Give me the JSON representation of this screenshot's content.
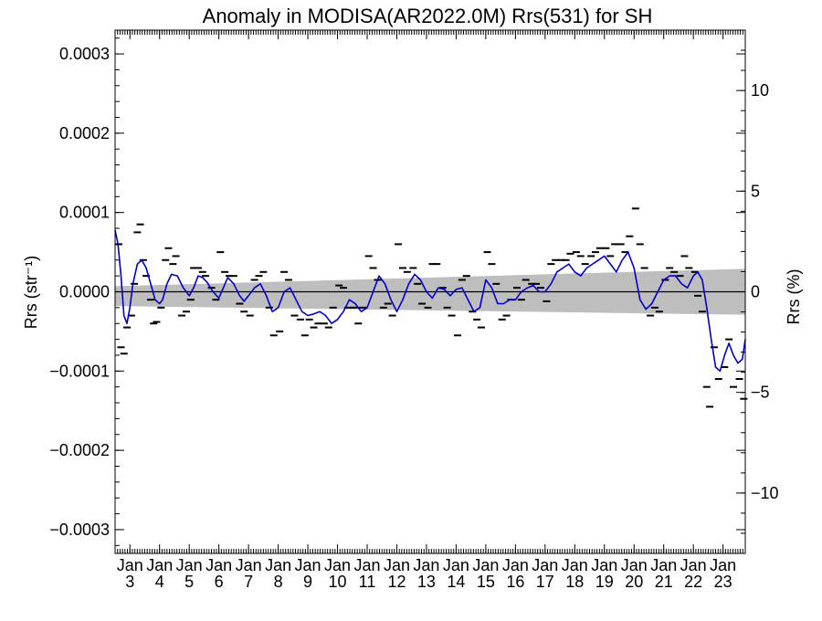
{
  "chart_data": {
    "type": "line",
    "title": "Anomaly in MODISA(AR2022.0M) Rrs(531) for SH",
    "ylabel": "Rrs (str⁻¹)",
    "y2label": "Rrs (%)",
    "xlabel": "",
    "ylim": [
      -0.00033,
      0.00033
    ],
    "y2lim": [
      -13,
      13
    ],
    "xlim": [
      2002.5,
      2023.75
    ],
    "yticks": [
      {
        "v": 0.0003,
        "label": "0.0003"
      },
      {
        "v": 0.0002,
        "label": "0.0002"
      },
      {
        "v": 0.0001,
        "label": "0.0001"
      },
      {
        "v": 0.0,
        "label": "0.0000"
      },
      {
        "v": -0.0001,
        "label": "−0.0001"
      },
      {
        "v": -0.0002,
        "label": "−0.0002"
      },
      {
        "v": -0.0003,
        "label": "−0.0003"
      }
    ],
    "y2ticks": [
      {
        "v": 10,
        "label": "10"
      },
      {
        "v": 5,
        "label": "5"
      },
      {
        "v": 0,
        "label": "0"
      },
      {
        "v": -5,
        "label": "−5"
      },
      {
        "v": -10,
        "label": "−10"
      }
    ],
    "xticks": [
      {
        "v": 2003,
        "month": "Jan",
        "year": "3"
      },
      {
        "v": 2004,
        "month": "Jan",
        "year": "4"
      },
      {
        "v": 2005,
        "month": "Jan",
        "year": "5"
      },
      {
        "v": 2006,
        "month": "Jan",
        "year": "6"
      },
      {
        "v": 2007,
        "month": "Jan",
        "year": "7"
      },
      {
        "v": 2008,
        "month": "Jan",
        "year": "8"
      },
      {
        "v": 2009,
        "month": "Jan",
        "year": "9"
      },
      {
        "v": 2010,
        "month": "Jan",
        "year": "10"
      },
      {
        "v": 2011,
        "month": "Jan",
        "year": "11"
      },
      {
        "v": 2012,
        "month": "Jan",
        "year": "12"
      },
      {
        "v": 2013,
        "month": "Jan",
        "year": "13"
      },
      {
        "v": 2014,
        "month": "Jan",
        "year": "14"
      },
      {
        "v": 2015,
        "month": "Jan",
        "year": "15"
      },
      {
        "v": 2016,
        "month": "Jan",
        "year": "16"
      },
      {
        "v": 2017,
        "month": "Jan",
        "year": "17"
      },
      {
        "v": 2018,
        "month": "Jan",
        "year": "18"
      },
      {
        "v": 2019,
        "month": "Jan",
        "year": "19"
      },
      {
        "v": 2020,
        "month": "Jan",
        "year": "20"
      },
      {
        "v": 2021,
        "month": "Jan",
        "year": "21"
      },
      {
        "v": 2022,
        "month": "Jan",
        "year": "22"
      },
      {
        "v": 2023,
        "month": "Jan",
        "year": "23"
      }
    ],
    "confidence_band": {
      "x": [
        2002.5,
        2023.75
      ],
      "upper": [
        7e-06,
        2.9e-05
      ],
      "lower": [
        -1.8e-05,
        -2.9e-05
      ],
      "color": "#bebebe"
    },
    "zero_line": 0,
    "colors": {
      "smooth_line": "#0000cc",
      "monthly_marks": "#000000",
      "band": "#bebebe",
      "zero_line": "#000000"
    },
    "series": [
      {
        "style": "line",
        "x": [
          2002.5,
          2002.6,
          2002.7,
          2002.8,
          2002.9,
          2003.0,
          2003.1,
          2003.25,
          2003.4,
          2003.55,
          2003.7,
          2003.85,
          2004.0,
          2004.1,
          2004.25,
          2004.4,
          2004.6,
          2004.8,
          2005.0,
          2005.15,
          2005.3,
          2005.45,
          2005.6,
          2005.8,
          2006.0,
          2006.15,
          2006.3,
          2006.5,
          2006.7,
          2006.85,
          2007.0,
          2007.2,
          2007.4,
          2007.6,
          2007.8,
          2008.0,
          2008.2,
          2008.4,
          2008.6,
          2008.8,
          2009.0,
          2009.2,
          2009.4,
          2009.6,
          2009.8,
          2010.0,
          2010.2,
          2010.4,
          2010.6,
          2010.8,
          2011.0,
          2011.2,
          2011.4,
          2011.6,
          2011.8,
          2012.0,
          2012.2,
          2012.4,
          2012.6,
          2012.8,
          2013.0,
          2013.2,
          2013.4,
          2013.6,
          2013.8,
          2014.0,
          2014.2,
          2014.4,
          2014.6,
          2014.8,
          2015.0,
          2015.2,
          2015.4,
          2015.6,
          2015.8,
          2016.0,
          2016.2,
          2016.4,
          2016.6,
          2016.8,
          2017.0,
          2017.2,
          2017.4,
          2017.6,
          2017.8,
          2018.0,
          2018.2,
          2018.4,
          2018.6,
          2018.8,
          2019.0,
          2019.2,
          2019.4,
          2019.6,
          2019.8,
          2020.0,
          2020.2,
          2020.4,
          2020.6,
          2020.8,
          2021.0,
          2021.2,
          2021.4,
          2021.6,
          2021.8,
          2022.0,
          2022.15,
          2022.3,
          2022.45,
          2022.6,
          2022.75,
          2022.9,
          2023.05,
          2023.2,
          2023.35,
          2023.5,
          2023.65,
          2023.75
        ],
        "values": [
          7.8e-05,
          6e-05,
          2e-05,
          -3e-05,
          -4e-05,
          -2e-05,
          1e-05,
          3.5e-05,
          4e-05,
          3e-05,
          1e-05,
          -1e-05,
          -1.5e-05,
          -1e-05,
          1e-05,
          2.2e-05,
          2e-05,
          5e-06,
          -5e-06,
          5e-06,
          2e-05,
          1.8e-05,
          1.2e-05,
          0.0,
          -8e-06,
          5e-06,
          1.8e-05,
          1e-05,
          -5e-06,
          -1.2e-05,
          -5e-06,
          5e-06,
          1e-05,
          -5e-06,
          -2.5e-05,
          -2e-05,
          0.0,
          5e-06,
          -1e-05,
          -2.5e-05,
          -3e-05,
          -2.8e-05,
          -2.5e-05,
          -3e-05,
          -4e-05,
          -3.5e-05,
          -2.5e-05,
          -1e-05,
          -1.5e-05,
          -2.5e-05,
          -2e-05,
          0.0,
          2e-05,
          1e-05,
          -1e-05,
          -2.5e-05,
          -1e-05,
          1e-05,
          2.2e-05,
          1.5e-05,
          0.0,
          -8e-06,
          5e-06,
          3e-06,
          -5e-06,
          3e-06,
          5e-06,
          -1e-05,
          -2.5e-05,
          -2e-05,
          1.5e-05,
          5e-06,
          -1.5e-05,
          -1.5e-05,
          -1e-05,
          -1e-05,
          0.0,
          5e-06,
          8e-06,
          0.0,
          0.0,
          1e-05,
          2.5e-05,
          3e-05,
          3.5e-05,
          2.5e-05,
          2e-05,
          3e-05,
          3.5e-05,
          4e-05,
          4.5e-05,
          3.5e-05,
          2.5e-05,
          4e-05,
          5e-05,
          3e-05,
          -1e-05,
          -2.2e-05,
          -1.5e-05,
          0.0,
          1.5e-05,
          2e-05,
          2e-05,
          1e-05,
          5e-06,
          2e-05,
          2.5e-05,
          1.5e-05,
          -2e-05,
          -6e-05,
          -9.5e-05,
          -0.0001,
          -8e-05,
          -6.5e-05,
          -8e-05,
          -9e-05,
          -8.5e-05,
          -6e-05
        ]
      },
      {
        "style": "ticks",
        "x": [
          2002.62,
          2002.7,
          2002.8,
          2002.9,
          2003.05,
          2003.15,
          2003.25,
          2003.35,
          2003.45,
          2003.55,
          2003.7,
          2003.8,
          2003.9,
          2004.05,
          2004.2,
          2004.3,
          2004.45,
          2004.55,
          2004.75,
          2004.9,
          2005.05,
          2005.15,
          2005.3,
          2005.45,
          2005.55,
          2005.75,
          2005.9,
          2006.05,
          2006.2,
          2006.35,
          2006.5,
          2006.7,
          2006.85,
          2007.05,
          2007.2,
          2007.35,
          2007.5,
          2007.7,
          2007.85,
          2008.05,
          2008.2,
          2008.35,
          2008.55,
          2008.75,
          2008.9,
          2009.05,
          2009.2,
          2009.35,
          2009.55,
          2009.7,
          2009.85,
          2010.05,
          2010.2,
          2010.35,
          2010.55,
          2010.7,
          2010.85,
          2011.05,
          2011.2,
          2011.35,
          2011.55,
          2011.7,
          2011.85,
          2012.05,
          2012.2,
          2012.35,
          2012.55,
          2012.7,
          2012.85,
          2013.05,
          2013.2,
          2013.35,
          2013.55,
          2013.7,
          2013.85,
          2014.05,
          2014.2,
          2014.35,
          2014.55,
          2014.7,
          2014.85,
          2015.05,
          2015.2,
          2015.35,
          2015.55,
          2015.7,
          2015.85,
          2016.05,
          2016.2,
          2016.35,
          2016.55,
          2016.7,
          2016.85,
          2017.05,
          2017.2,
          2017.35,
          2017.55,
          2017.7,
          2017.85,
          2018.05,
          2018.2,
          2018.35,
          2018.55,
          2018.7,
          2018.85,
          2019.05,
          2019.2,
          2019.35,
          2019.55,
          2019.7,
          2019.85,
          2020.05,
          2020.2,
          2020.35,
          2020.55,
          2020.7,
          2020.85,
          2021.05,
          2021.2,
          2021.35,
          2021.55,
          2021.7,
          2021.85,
          2022.05,
          2022.15,
          2022.3,
          2022.45,
          2022.55,
          2022.7,
          2022.85,
          2023.05,
          2023.2,
          2023.35,
          2023.55,
          2023.7
        ],
        "values": [
          6e-05,
          -7e-05,
          -7.8e-05,
          -4.5e-05,
          -3e-05,
          1e-05,
          7.5e-05,
          8.5e-05,
          4e-05,
          2e-05,
          -1e-05,
          -4e-05,
          -3.8e-05,
          -2e-05,
          4e-05,
          5.5e-05,
          3.5e-05,
          4.5e-05,
          -3e-05,
          -2.5e-05,
          -1e-05,
          3e-05,
          3e-05,
          2.5e-05,
          2e-05,
          5e-06,
          -1e-05,
          5e-05,
          2.5e-05,
          2e-05,
          2e-05,
          -1.5e-05,
          -2.5e-05,
          -3e-05,
          1.5e-05,
          2e-05,
          2.5e-05,
          -2e-05,
          -5.5e-05,
          -5e-05,
          2.5e-05,
          1.5e-05,
          -3e-05,
          -3.5e-05,
          -5.5e-05,
          -3.5e-05,
          -4.5e-05,
          -4e-05,
          -4e-05,
          -4.5e-05,
          -2e-05,
          8e-06,
          5e-06,
          -2e-05,
          -2e-05,
          -4e-05,
          -2e-05,
          4.5e-05,
          3e-05,
          1.5e-05,
          -2e-05,
          -1.5e-05,
          -3e-05,
          6e-05,
          3e-05,
          2.5e-05,
          3e-05,
          1e-05,
          -1.5e-05,
          -2e-05,
          3.5e-05,
          3.5e-05,
          5e-06,
          -2e-05,
          -3e-05,
          -5.5e-05,
          1.5e-05,
          2e-05,
          -2.5e-05,
          -3.5e-05,
          -4.5e-05,
          5e-05,
          3.5e-05,
          1e-05,
          -3.5e-05,
          -3e-05,
          -1e-05,
          5e-06,
          -1e-05,
          1.5e-05,
          1e-05,
          1e-05,
          5e-06,
          -1.2e-05,
          3.5e-05,
          4e-05,
          4e-05,
          4e-05,
          4.8e-05,
          5e-05,
          4.5e-05,
          3.5e-05,
          4.5e-05,
          5e-05,
          5.5e-05,
          5.5e-05,
          4.5e-05,
          6e-05,
          6e-05,
          5e-05,
          7e-05,
          0.000105,
          6e-05,
          3e-05,
          -3e-05,
          -2e-05,
          -2.5e-05,
          1.5e-05,
          3e-05,
          2.5e-05,
          2e-05,
          4.5e-05,
          3e-05,
          2.5e-05,
          -5e-06,
          -2.5e-05,
          -0.00012,
          -0.000145,
          -7e-05,
          -0.00011,
          -9.5e-05,
          -6e-05,
          -0.00012,
          -0.00011,
          -0.000135
        ]
      }
    ]
  }
}
